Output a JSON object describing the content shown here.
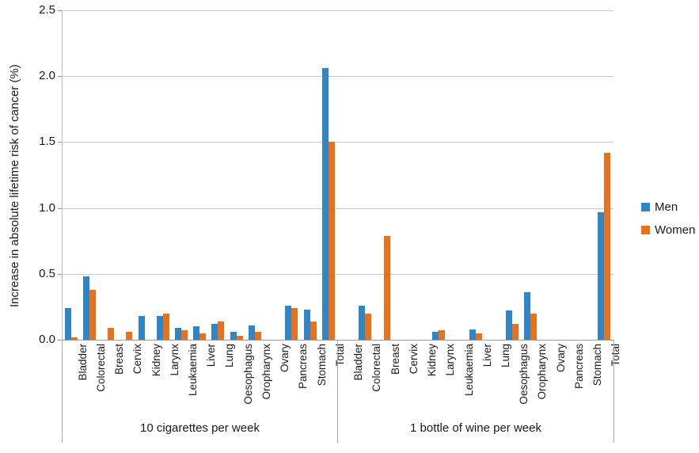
{
  "chart_data": {
    "type": "bar",
    "title": "",
    "xlabel": "",
    "ylabel": "Increase in absolute lifetime risk of cancer (%)",
    "ylim": [
      0,
      2.5
    ],
    "yticks": [
      "0.0",
      "0.5",
      "1.0",
      "1.5",
      "2.0",
      "2.5"
    ],
    "grid": true,
    "legend_position": "right",
    "legend": [
      {
        "label": "Men",
        "color": "#2e86c8"
      },
      {
        "label": "Women",
        "color": "#e8711c"
      }
    ],
    "categories": [
      "Bladder",
      "Colorectal",
      "Breast",
      "Cervix",
      "Kidney",
      "Larynx",
      "Leukaemia",
      "Liver",
      "Lung",
      "Oesophagus",
      "Oropharynx",
      "Ovary",
      "Pancreas",
      "Stomach",
      "Total"
    ],
    "groups": [
      {
        "label": "10 cigarettes per week",
        "series": [
          {
            "name": "Men",
            "values": [
              0.24,
              0.48,
              0,
              0,
              0.18,
              0.18,
              0.09,
              0.1,
              0.12,
              0.06,
              0.11,
              0,
              0.26,
              0.23,
              2.06
            ]
          },
          {
            "name": "Women",
            "values": [
              0.02,
              0.38,
              0.09,
              0.06,
              0,
              0.2,
              0.07,
              0.05,
              0.14,
              0.03,
              0.06,
              0,
              0.24,
              0.14,
              1.5
            ]
          }
        ]
      },
      {
        "label": "1 bottle of wine per week",
        "series": [
          {
            "name": "Men",
            "values": [
              0,
              0.26,
              0,
              0,
              0,
              0.06,
              0,
              0.08,
              0,
              0.22,
              0.36,
              0,
              0,
              0,
              0.97
            ]
          },
          {
            "name": "Women",
            "values": [
              0,
              0.2,
              0.79,
              0,
              0,
              0.07,
              0,
              0.05,
              0,
              0.12,
              0.2,
              0,
              0,
              0,
              1.42
            ]
          }
        ]
      }
    ]
  }
}
